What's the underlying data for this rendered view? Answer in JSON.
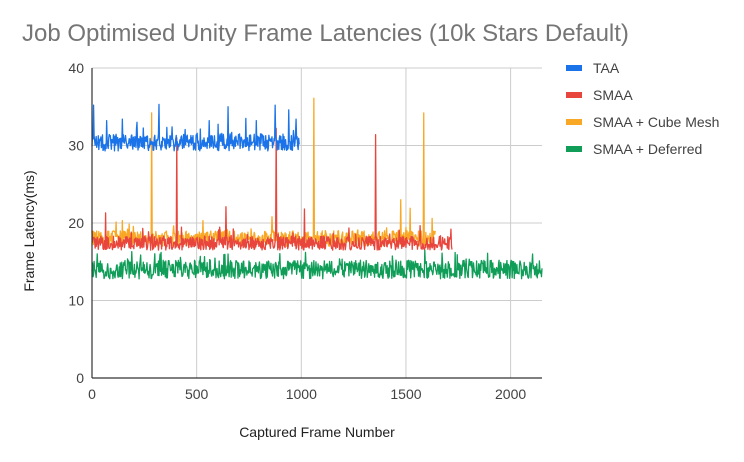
{
  "chart_data": {
    "type": "line",
    "title": "Job Optimised Unity Frame Latencies (10k Stars Default)",
    "xlabel": "Captured Frame Number",
    "ylabel": "Frame Latency(ms)",
    "xlim": [
      0,
      2150
    ],
    "ylim": [
      0,
      40
    ],
    "xticks": [
      0,
      500,
      1000,
      1500,
      2000
    ],
    "yticks": [
      0,
      10,
      20,
      30,
      40
    ],
    "grid": true,
    "legend_position": "right",
    "series": [
      {
        "name": "TAA",
        "color": "#1a73e8",
        "x_range": [
          0,
          990
        ],
        "baseline": 30.4,
        "noise": 1.1,
        "spikes": [
          [
            8,
            35.2
          ],
          [
            70,
            33.2
          ],
          [
            145,
            33.4
          ],
          [
            215,
            33.0
          ],
          [
            320,
            35.3
          ],
          [
            560,
            33.2
          ],
          [
            650,
            35.0
          ],
          [
            735,
            33.5
          ],
          [
            785,
            33.2
          ],
          [
            875,
            35.2
          ],
          [
            940,
            34.6
          ],
          [
            975,
            33.4
          ]
        ]
      },
      {
        "name": "SMAA",
        "color": "#e8453c",
        "x_range": [
          0,
          1720
        ],
        "baseline": 17.4,
        "noise": 0.9,
        "spikes": [
          [
            65,
            21.3
          ],
          [
            405,
            31.0
          ],
          [
            640,
            22.1
          ],
          [
            880,
            32.2
          ],
          [
            1015,
            21.8
          ],
          [
            1355,
            31.4
          ]
        ]
      },
      {
        "name": "SMAA + Cube Mesh",
        "color": "#f9a825",
        "x_range": [
          0,
          1640
        ],
        "baseline": 18.0,
        "noise": 1.0,
        "spikes": [
          [
            145,
            20.3
          ],
          [
            285,
            34.2
          ],
          [
            530,
            20.3
          ],
          [
            860,
            20.8
          ],
          [
            1060,
            36.1
          ],
          [
            1475,
            23.0
          ],
          [
            1520,
            21.9
          ],
          [
            1585,
            34.2
          ],
          [
            1625,
            20.6
          ]
        ]
      },
      {
        "name": "SMAA + Deferred",
        "color": "#0f9d58",
        "x_range": [
          0,
          2150
        ],
        "baseline": 14.0,
        "noise": 1.2,
        "spikes": [
          [
            190,
            16.3
          ],
          [
            330,
            16.2
          ],
          [
            650,
            16.0
          ],
          [
            1020,
            16.2
          ],
          [
            1745,
            15.9
          ],
          [
            1890,
            16.1
          ],
          [
            2105,
            16.0
          ]
        ]
      }
    ]
  }
}
